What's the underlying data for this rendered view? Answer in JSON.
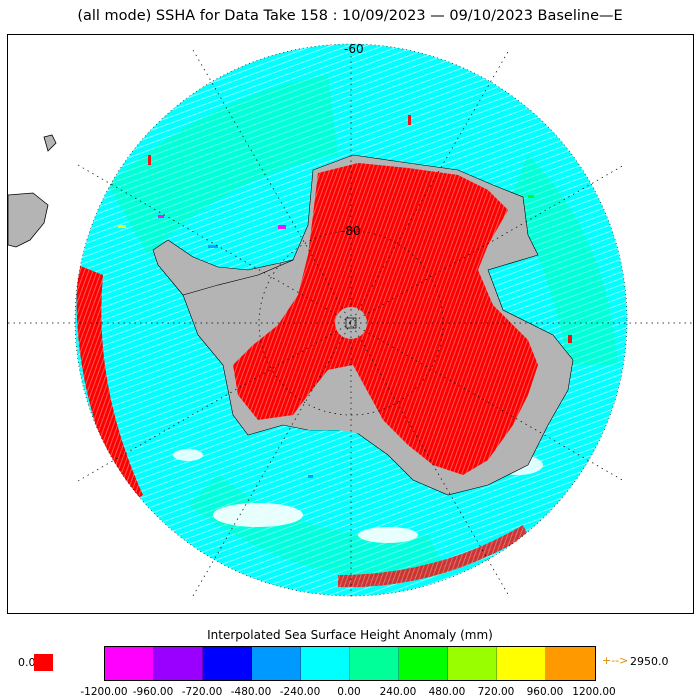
{
  "title": "(all mode) SSHA for Data Take 158 : 10/09/2023 — 09/10/2023 Baseline—E",
  "map": {
    "projection": "south-polar-stereographic",
    "lat_labels": [
      "-60",
      "-80"
    ],
    "colors": {
      "land": "#b4b4b4",
      "ice_anomaly": "#ff0000",
      "ocean_track": "#00ffff",
      "background": "#ffffff"
    }
  },
  "colorbar": {
    "title": "Interpolated Sea Surface Height Anomaly (mm)",
    "colors": [
      "#ff00ff",
      "#9900ff",
      "#0000ff",
      "#0099ff",
      "#00ffff",
      "#00ff99",
      "#00ff00",
      "#99ff00",
      "#ffff00",
      "#ff9900"
    ],
    "ticks": [
      "-1200.00",
      "-960.00",
      "-720.00",
      "-480.00",
      "-240.00",
      "0.00",
      "240.00",
      "480.00",
      "720.00",
      "960.00",
      "1200.00"
    ],
    "zero_label": "0.0",
    "zero_color": "#ff0000",
    "overflow_arrow": "+-->",
    "overflow_label": "2950.0"
  }
}
